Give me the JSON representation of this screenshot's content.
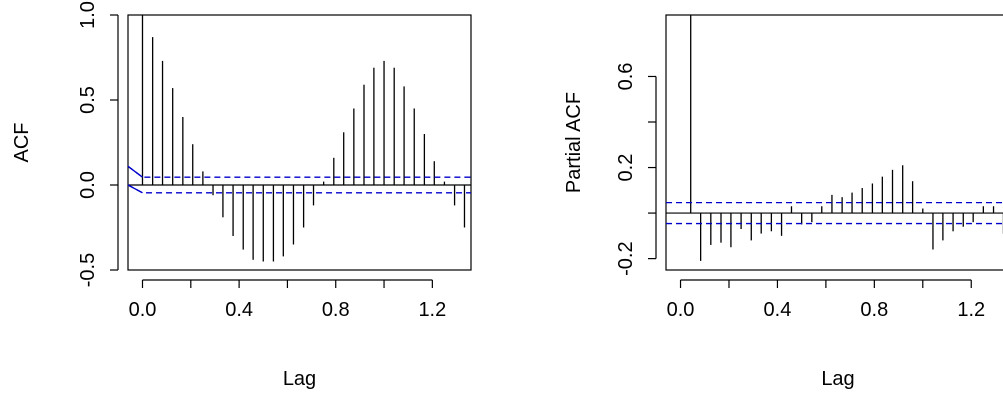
{
  "chart_data": [
    {
      "type": "bar",
      "subtype": "acf-spikes",
      "xlabel": "Lag",
      "ylabel": "ACF",
      "xlim": [
        -0.06,
        1.36
      ],
      "ylim": [
        -0.5,
        1.0
      ],
      "xticks": [
        "0.0",
        "0.4",
        "0.8",
        "1.2"
      ],
      "xtick_values": [
        0.0,
        0.4,
        0.8,
        1.2
      ],
      "yticks": [
        "-0.5",
        "0.0",
        "0.5",
        "1.0"
      ],
      "ytick_values": [
        -0.5,
        0.0,
        0.5,
        1.0
      ],
      "confidence_band": [
        -0.046,
        0.046
      ],
      "series": [
        {
          "lags": [
            0.0,
            0.042,
            0.083,
            0.125,
            0.167,
            0.208,
            0.25,
            0.292,
            0.333,
            0.375,
            0.417,
            0.458,
            0.5,
            0.542,
            0.583,
            0.625,
            0.667,
            0.708,
            0.75,
            0.792,
            0.833,
            0.875,
            0.917,
            0.958,
            1.0,
            1.042,
            1.083,
            1.125,
            1.167,
            1.208,
            1.25,
            1.292,
            1.333
          ],
          "values": [
            1.0,
            0.87,
            0.73,
            0.57,
            0.4,
            0.24,
            0.08,
            -0.06,
            -0.19,
            -0.3,
            -0.38,
            -0.44,
            -0.45,
            -0.45,
            -0.42,
            -0.35,
            -0.25,
            -0.12,
            0.02,
            0.16,
            0.31,
            0.45,
            0.59,
            0.69,
            0.73,
            0.69,
            0.58,
            0.45,
            0.3,
            0.14,
            0.02,
            -0.12,
            -0.25
          ]
        }
      ]
    },
    {
      "type": "bar",
      "subtype": "pacf-spikes",
      "xlabel": "Lag",
      "ylabel": "Partial ACF",
      "xlim": [
        -0.06,
        1.36
      ],
      "ylim": [
        -0.25,
        0.87
      ],
      "xticks": [
        "0.0",
        "0.4",
        "0.8",
        "1.2"
      ],
      "xtick_values": [
        0.0,
        0.4,
        0.8,
        1.2
      ],
      "yticks": [
        "-0.2",
        "0.2",
        "0.6"
      ],
      "ytick_values": [
        -0.2,
        0.2,
        0.6
      ],
      "confidence_band": [
        -0.046,
        0.046
      ],
      "series": [
        {
          "lags": [
            0.042,
            0.083,
            0.125,
            0.167,
            0.208,
            0.25,
            0.292,
            0.333,
            0.375,
            0.417,
            0.458,
            0.5,
            0.542,
            0.583,
            0.625,
            0.667,
            0.708,
            0.75,
            0.792,
            0.833,
            0.875,
            0.917,
            0.958,
            1.0,
            1.042,
            1.083,
            1.125,
            1.167,
            1.208,
            1.25,
            1.292,
            1.333
          ],
          "values": [
            0.87,
            -0.21,
            -0.14,
            -0.13,
            -0.15,
            -0.07,
            -0.12,
            -0.09,
            -0.08,
            -0.1,
            0.03,
            -0.05,
            -0.04,
            0.03,
            0.08,
            0.07,
            0.09,
            0.11,
            0.13,
            0.16,
            0.19,
            0.21,
            0.14,
            0.02,
            -0.16,
            -0.12,
            -0.08,
            -0.06,
            -0.04,
            0.03,
            0.03,
            -0.09
          ]
        }
      ]
    }
  ]
}
